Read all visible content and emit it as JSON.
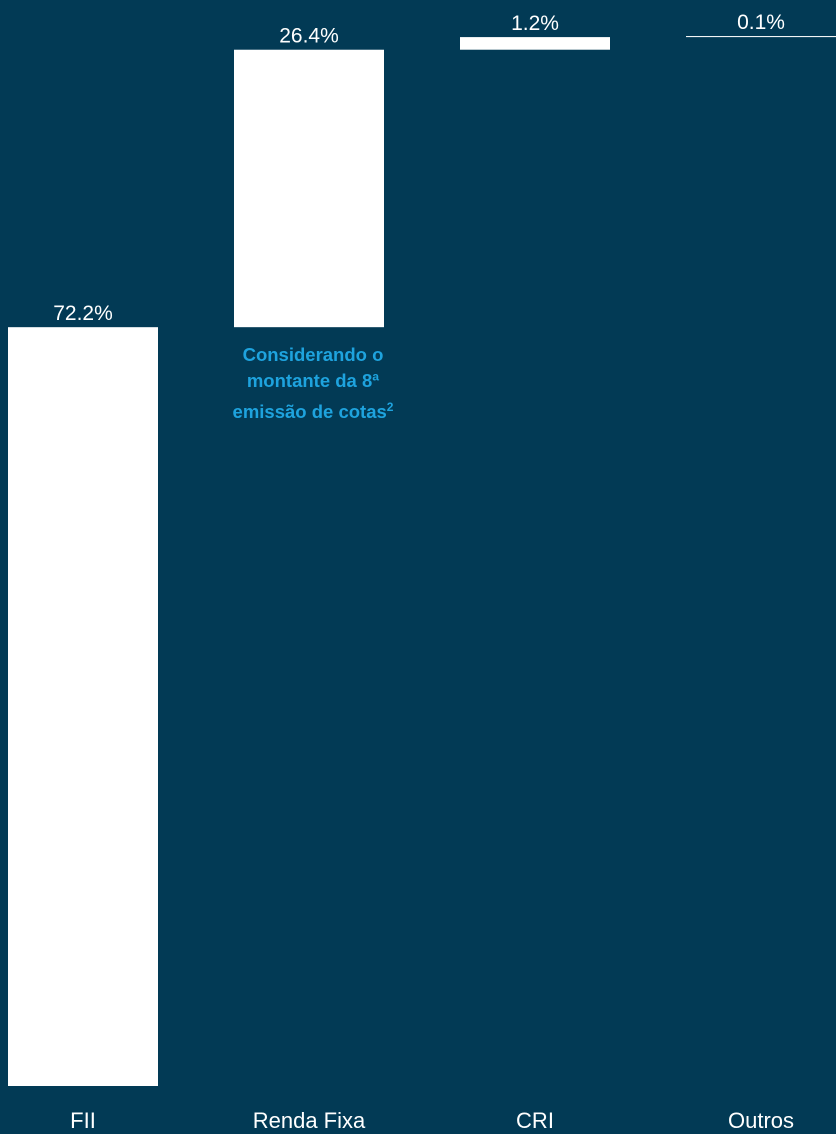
{
  "chart_data": {
    "type": "waterfall",
    "title": "",
    "xlabel": "",
    "ylabel": "",
    "categories": [
      "FII",
      "Renda Fixa",
      "CRI",
      "Outros"
    ],
    "values": [
      72.2,
      26.4,
      1.2,
      0.1
    ],
    "value_labels": [
      "72.2%",
      "26.4%",
      "1.2%",
      "0.1%"
    ],
    "unit": "%",
    "ylim": [
      0,
      100
    ],
    "grid": false,
    "legend": "none"
  },
  "colors": {
    "background": "#023a55",
    "bar": "#ffffff",
    "annotation": "#1ea3de"
  },
  "annotation": {
    "line1": "Considerando o",
    "line2": "montante da 8ª",
    "line3": "emissão de cotas",
    "superscript": "2"
  }
}
